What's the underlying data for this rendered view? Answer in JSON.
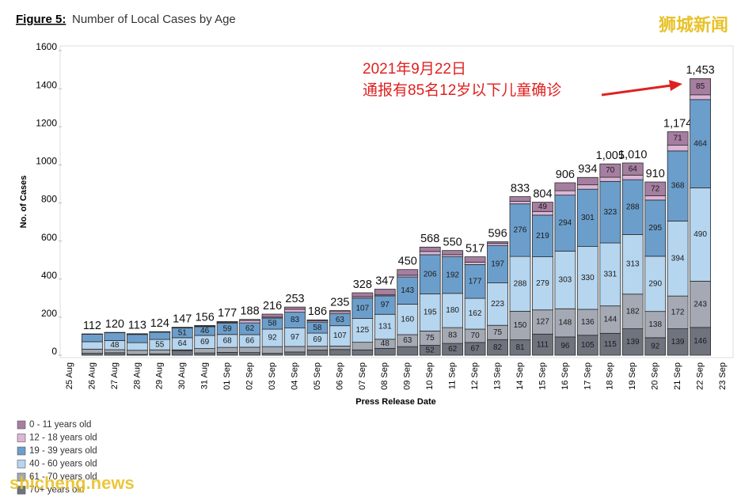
{
  "chart_data": {
    "type": "stacked_bar",
    "title_label": "Figure 5:",
    "title": "Number of Local Cases by Age",
    "y_label": "No. of Cases",
    "x_label": "Press Release Date",
    "annotations": [
      "2021年9月22日",
      "通报有85名12岁以下儿童确诊"
    ],
    "watermarks": [
      "狮城新闻",
      "shicheng.news"
    ],
    "categories": [
      "25 Aug",
      "26 Aug",
      "27 Aug",
      "28 Aug",
      "29 Aug",
      "30 Aug",
      "31 Aug",
      "01 Sep",
      "02 Sep",
      "03 Sep",
      "04 Sep",
      "05 Sep",
      "06 Sep",
      "07 Sep",
      "08 Sep",
      "09 Sep",
      "10 Sep",
      "11 Sep",
      "12 Sep",
      "13 Sep",
      "14 Sep",
      "15 Sep",
      "16 Sep",
      "17 Sep",
      "18 Sep",
      "19 Sep",
      "20 Sep",
      "21 Sep",
      "22 Sep",
      "23 Sep"
    ],
    "series": [
      {
        "name": "0 - 11 years old",
        "color": "#a57ea0",
        "values": [
          null,
          1,
          1,
          2,
          1,
          2,
          3,
          4,
          5,
          16,
          12,
          5,
          7,
          20,
          30,
          30,
          23,
          22,
          28,
          8,
          25,
          49,
          42,
          39,
          70,
          64,
          72,
          71,
          85,
          null
        ]
      },
      {
        "name": "12 - 18 years old",
        "color": "#dcb6d6",
        "values": [
          null,
          1,
          1,
          2,
          2,
          2,
          3,
          5,
          13,
          5,
          15,
          7,
          10,
          8,
          5,
          9,
          17,
          11,
          13,
          11,
          13,
          19,
          23,
          23,
          22,
          24,
          23,
          30,
          25,
          null
        ]
      },
      {
        "name": "19 - 39 years old",
        "color": "#6c9ecb",
        "values": [
          null,
          39,
          41,
          43,
          38,
          51,
          46,
          59,
          62,
          58,
          83,
          58,
          63,
          107,
          97,
          143,
          206,
          192,
          177,
          197,
          276,
          219,
          294,
          301,
          323,
          288,
          295,
          368,
          464,
          null
        ]
      },
      {
        "name": "40 - 60 years old",
        "color": "#b6d5ee",
        "values": [
          null,
          39,
          48,
          40,
          55,
          64,
          69,
          68,
          66,
          92,
          97,
          69,
          107,
          125,
          131,
          160,
          195,
          180,
          162,
          223,
          288,
          279,
          303,
          330,
          331,
          313,
          290,
          394,
          490,
          null
        ]
      },
      {
        "name": "61 - 70 years old",
        "color": "#a4a9b4",
        "values": [
          null,
          22,
          16,
          22,
          21,
          3,
          23,
          26,
          28,
          35,
          29,
          20,
          18,
          40,
          48,
          63,
          75,
          83,
          70,
          75,
          150,
          127,
          148,
          136,
          144,
          182,
          138,
          172,
          243,
          null
        ]
      },
      {
        "name": "70+ years old",
        "color": "#6f737d",
        "values": [
          null,
          10,
          13,
          4,
          7,
          25,
          12,
          15,
          14,
          10,
          17,
          27,
          30,
          28,
          36,
          45,
          52,
          62,
          67,
          82,
          81,
          111,
          96,
          105,
          115,
          139,
          92,
          139,
          146,
          null
        ]
      }
    ],
    "totals": {
      "values": [
        null,
        112,
        120,
        113,
        124,
        147,
        156,
        177,
        188,
        216,
        253,
        186,
        235,
        328,
        347,
        450,
        568,
        550,
        517,
        596,
        833,
        804,
        906,
        934,
        1005,
        1010,
        910,
        1174,
        1453,
        null
      ],
      "value_labels": [
        null,
        "112",
        "120",
        "113",
        "124",
        "147",
        "156",
        "177",
        "188",
        "216",
        "253",
        "186",
        "235",
        "328",
        "347",
        "450",
        "568",
        "550",
        "517",
        "596",
        "833",
        "804",
        "906",
        "934",
        "1,005",
        "1,010",
        "910",
        "1,174",
        "1,453",
        null
      ]
    },
    "ylim": [
      0,
      1600
    ],
    "yticks": [
      0,
      200,
      400,
      600,
      800,
      1000,
      1200,
      1400,
      1600
    ]
  }
}
